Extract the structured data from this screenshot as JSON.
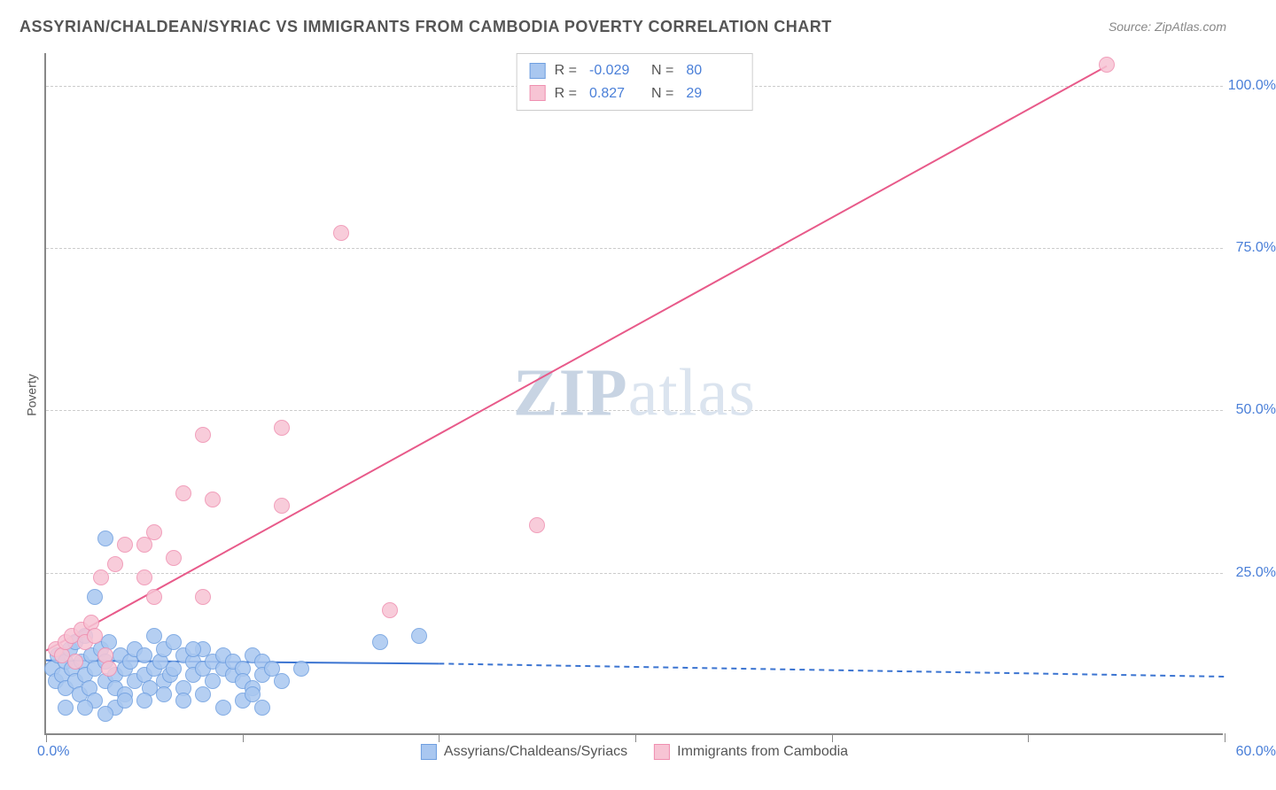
{
  "title": "ASSYRIAN/CHALDEAN/SYRIAC VS IMMIGRANTS FROM CAMBODIA POVERTY CORRELATION CHART",
  "source": "Source: ZipAtlas.com",
  "y_axis_label": "Poverty",
  "watermark_bold": "ZIP",
  "watermark_rest": "atlas",
  "chart": {
    "type": "scatter",
    "xlim": [
      0,
      60
    ],
    "ylim": [
      0,
      105
    ],
    "x_ticks": [
      0,
      10,
      20,
      30,
      40,
      50,
      60
    ],
    "y_gridlines": [
      25,
      50,
      75,
      100
    ],
    "y_tick_labels": [
      "25.0%",
      "50.0%",
      "75.0%",
      "100.0%"
    ],
    "x_origin_label": "0.0%",
    "x_end_label": "60.0%",
    "background_color": "#ffffff",
    "grid_color": "#cccccc",
    "point_radius": 9,
    "series": [
      {
        "name": "Assyrians/Chaldeans/Syriacs",
        "fill": "#a9c7f0",
        "stroke": "#6f9fe0",
        "R": "-0.029",
        "N": "80",
        "trend": {
          "x1": 0,
          "y1": 11.5,
          "x2": 20,
          "y2": 11.0,
          "dash_x2": 60,
          "dash_y2": 9.0,
          "color": "#3b74d1",
          "width": 2
        },
        "points": [
          [
            0.3,
            10
          ],
          [
            0.5,
            8
          ],
          [
            0.6,
            12
          ],
          [
            0.8,
            9
          ],
          [
            1.0,
            7
          ],
          [
            1.0,
            11
          ],
          [
            1.2,
            13
          ],
          [
            1.3,
            10
          ],
          [
            1.5,
            8
          ],
          [
            1.5,
            14
          ],
          [
            1.7,
            6
          ],
          [
            1.8,
            11
          ],
          [
            2.0,
            9
          ],
          [
            2.0,
            15
          ],
          [
            2.2,
            7
          ],
          [
            2.3,
            12
          ],
          [
            2.5,
            10
          ],
          [
            2.5,
            5
          ],
          [
            2.8,
            13
          ],
          [
            3.0,
            8
          ],
          [
            3.0,
            11
          ],
          [
            3.2,
            14
          ],
          [
            3.5,
            9
          ],
          [
            3.5,
            7
          ],
          [
            3.8,
            12
          ],
          [
            4.0,
            10
          ],
          [
            4.0,
            6
          ],
          [
            4.3,
            11
          ],
          [
            4.5,
            8
          ],
          [
            4.5,
            13
          ],
          [
            3.0,
            30
          ],
          [
            2.5,
            21
          ],
          [
            5.0,
            9
          ],
          [
            5.0,
            12
          ],
          [
            5.3,
            7
          ],
          [
            5.5,
            10
          ],
          [
            5.8,
            11
          ],
          [
            6.0,
            8
          ],
          [
            6.0,
            13
          ],
          [
            6.3,
            9
          ],
          [
            6.5,
            10
          ],
          [
            7.0,
            12
          ],
          [
            7.0,
            7
          ],
          [
            7.5,
            11
          ],
          [
            7.5,
            9
          ],
          [
            8.0,
            10
          ],
          [
            8.0,
            13
          ],
          [
            8.5,
            8
          ],
          [
            8.5,
            11
          ],
          [
            9.0,
            10
          ],
          [
            9.0,
            12
          ],
          [
            9.5,
            9
          ],
          [
            9.5,
            11
          ],
          [
            10.0,
            10
          ],
          [
            10.0,
            8
          ],
          [
            10.5,
            12
          ],
          [
            10.5,
            7
          ],
          [
            11.0,
            11
          ],
          [
            11.0,
            9
          ],
          [
            11.5,
            10
          ],
          [
            3.5,
            4
          ],
          [
            4.0,
            5
          ],
          [
            5.0,
            5
          ],
          [
            6.0,
            6
          ],
          [
            7.0,
            5
          ],
          [
            8.0,
            6
          ],
          [
            9.0,
            4
          ],
          [
            10.0,
            5
          ],
          [
            10.5,
            6
          ],
          [
            11.0,
            4
          ],
          [
            17.0,
            14
          ],
          [
            19.0,
            15
          ],
          [
            12.0,
            8
          ],
          [
            13.0,
            10
          ],
          [
            5.5,
            15
          ],
          [
            6.5,
            14
          ],
          [
            7.5,
            13
          ],
          [
            1.0,
            4
          ],
          [
            2.0,
            4
          ],
          [
            3.0,
            3
          ]
        ]
      },
      {
        "name": "Immigrants from Cambodia",
        "fill": "#f7c4d4",
        "stroke": "#ef8fb0",
        "R": "0.827",
        "N": "29",
        "trend": {
          "x1": 0,
          "y1": 13,
          "x2": 54,
          "y2": 103,
          "color": "#e85a8a",
          "width": 2
        },
        "points": [
          [
            0.5,
            13
          ],
          [
            0.8,
            12
          ],
          [
            1.0,
            14
          ],
          [
            1.3,
            15
          ],
          [
            1.5,
            11
          ],
          [
            1.8,
            16
          ],
          [
            2.0,
            14
          ],
          [
            2.3,
            17
          ],
          [
            2.5,
            15
          ],
          [
            2.8,
            24
          ],
          [
            3.5,
            26
          ],
          [
            3.0,
            12
          ],
          [
            3.2,
            10
          ],
          [
            4.0,
            29
          ],
          [
            5.0,
            29
          ],
          [
            5.5,
            31
          ],
          [
            5.0,
            24
          ],
          [
            5.5,
            21
          ],
          [
            6.5,
            27
          ],
          [
            8.0,
            21
          ],
          [
            7.0,
            37
          ],
          [
            8.5,
            36
          ],
          [
            12.0,
            35
          ],
          [
            8.0,
            46
          ],
          [
            12.0,
            47
          ],
          [
            17.5,
            19
          ],
          [
            15.0,
            77
          ],
          [
            25.0,
            32
          ],
          [
            54.0,
            103
          ]
        ]
      }
    ]
  },
  "legend_bottom": [
    {
      "label": "Assyrians/Chaldeans/Syriacs",
      "fill": "#a9c7f0",
      "stroke": "#6f9fe0"
    },
    {
      "label": "Immigrants from Cambodia",
      "fill": "#f7c4d4",
      "stroke": "#ef8fb0"
    }
  ]
}
